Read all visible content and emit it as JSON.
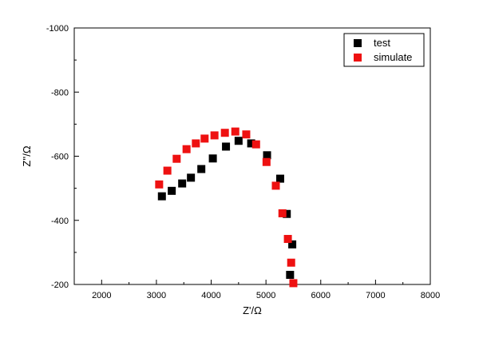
{
  "chart_data": {
    "type": "scatter",
    "title": "",
    "xlabel": "Z'/Ω",
    "ylabel": "Z''/Ω",
    "xlim": [
      1500,
      8000
    ],
    "ylim": [
      -1000,
      -200
    ],
    "y_inverted": true,
    "x_ticks": [
      2000,
      3000,
      4000,
      5000,
      6000,
      7000,
      8000
    ],
    "y_ticks": [
      -1000,
      -800,
      -600,
      -400,
      -200
    ],
    "grid": false,
    "legend_position": "top-right",
    "series": [
      {
        "name": "test",
        "color": "#000000",
        "marker": "square",
        "x": [
          3100,
          3280,
          3470,
          3630,
          3820,
          4030,
          4270,
          4500,
          4730,
          5020,
          5260,
          5380,
          5480,
          5440
        ],
        "y": [
          -475,
          -492,
          -515,
          -533,
          -560,
          -593,
          -630,
          -648,
          -640,
          -603,
          -530,
          -420,
          -325,
          -230
        ]
      },
      {
        "name": "simulate",
        "color": "#ee1111",
        "marker": "square",
        "x": [
          3050,
          3200,
          3370,
          3550,
          3720,
          3880,
          4060,
          4250,
          4440,
          4640,
          4820,
          5010,
          5180,
          5300,
          5400,
          5460,
          5500
        ],
        "y": [
          -512,
          -555,
          -592,
          -622,
          -640,
          -655,
          -665,
          -673,
          -677,
          -668,
          -637,
          -582,
          -508,
          -422,
          -342,
          -268,
          -204
        ]
      }
    ]
  }
}
